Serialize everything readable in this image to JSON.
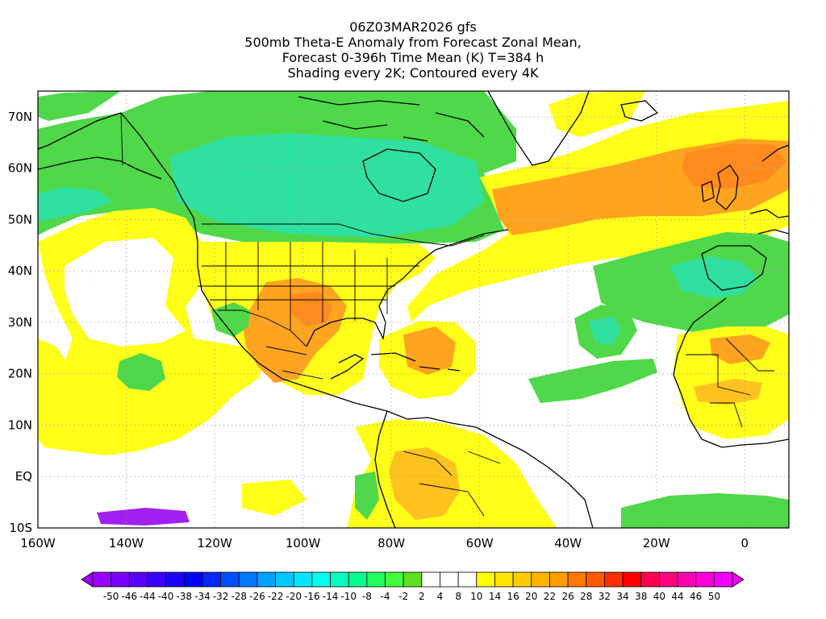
{
  "title": {
    "line1": "06Z03MAR2026 gfs",
    "line2": "500mb Theta-E Anomaly from Forecast Zonal Mean,",
    "line3": "Forecast 0-396h Time Mean (K) T=384 h",
    "line4": "Shading every 2K; Contoured every 4K"
  },
  "map": {
    "lon_range": [
      -160,
      10
    ],
    "lat_range": [
      -10,
      75
    ],
    "lon_ticks": [
      {
        "lon": -160,
        "label": "160W"
      },
      {
        "lon": -140,
        "label": "140W"
      },
      {
        "lon": -120,
        "label": "120W"
      },
      {
        "lon": -100,
        "label": "100W"
      },
      {
        "lon": -80,
        "label": "80W"
      },
      {
        "lon": -60,
        "label": "60W"
      },
      {
        "lon": -40,
        "label": "40W"
      },
      {
        "lon": -20,
        "label": "20W"
      },
      {
        "lon": 0,
        "label": "0"
      }
    ],
    "lat_ticks": [
      {
        "lat": 70,
        "label": "70N"
      },
      {
        "lat": 60,
        "label": "60N"
      },
      {
        "lat": 50,
        "label": "50N"
      },
      {
        "lat": 40,
        "label": "40N"
      },
      {
        "lat": 30,
        "label": "30N"
      },
      {
        "lat": 20,
        "label": "20N"
      },
      {
        "lat": 10,
        "label": "10N"
      },
      {
        "lat": 0,
        "label": "EQ"
      },
      {
        "lat": -10,
        "label": "10S"
      }
    ],
    "grid": "dotted",
    "colors": {
      "green": "#4fd84a",
      "green_light": "#6fe046",
      "green_cyan": "#2fe0a0",
      "cyan": "#26f0c8",
      "yellow": "#ffff1a",
      "yellow_orange": "#ffe01a",
      "orange_light": "#ffc21e",
      "orange": "#ffa41e",
      "orange_dark": "#ff8a1e",
      "purple": "#a020f0",
      "coast": "#000000"
    }
  },
  "colorbar": {
    "labels": [
      "-50",
      "-46",
      "-44",
      "-40",
      "-38",
      "-34",
      "-32",
      "-28",
      "-26",
      "-22",
      "-20",
      "-16",
      "-14",
      "-10",
      "-8",
      "-4",
      "-2",
      "2",
      "4",
      "8",
      "10",
      "14",
      "16",
      "20",
      "22",
      "26",
      "28",
      "32",
      "34",
      "38",
      "40",
      "44",
      "46",
      "50"
    ],
    "colors": [
      "#9a00ff",
      "#7a00ff",
      "#5a00ff",
      "#3c00ff",
      "#1e00ff",
      "#0000ff",
      "#0028ff",
      "#0050ff",
      "#0078ff",
      "#00a0ff",
      "#00c8ff",
      "#00e6ff",
      "#00ffee",
      "#00ffc0",
      "#00ff90",
      "#20ff60",
      "#40ff40",
      "#5ee020",
      "#ffffff",
      "#ffffff",
      "#ffffff",
      "#ffff00",
      "#ffe600",
      "#ffcc00",
      "#ffb400",
      "#ff9c00",
      "#ff7800",
      "#ff5a00",
      "#ff3000",
      "#ff0000",
      "#ff0050",
      "#ff0080",
      "#ff00b0",
      "#ff00d8",
      "#f000ff"
    ],
    "arrow_left_color": "#9a00ff",
    "arrow_right_color": "#f000ff"
  }
}
